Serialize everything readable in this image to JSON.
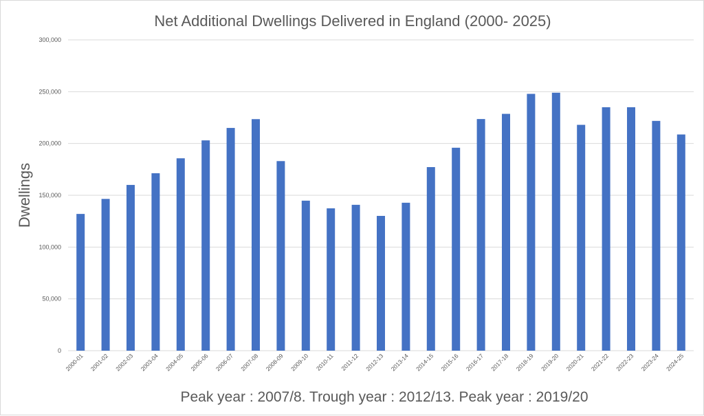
{
  "chart_data": {
    "type": "bar",
    "title": "Net Additional Dwellings Delivered in England (2000- 2025)",
    "xlabel": "Peak year : 2007/8. Trough year : 2012/13. Peak year : 2019/20",
    "ylabel": "Dwellings",
    "ylim": [
      0,
      300000
    ],
    "yticks": [
      0,
      50000,
      100000,
      150000,
      200000,
      250000,
      300000
    ],
    "ytick_labels": [
      "0",
      "50,000",
      "100,000",
      "150,000",
      "200,000",
      "250,000",
      "300,000"
    ],
    "grid": true,
    "bar_color": "#4472C4",
    "categories": [
      "2000-01",
      "2001-02",
      "2002-03",
      "2003-04",
      "2004-05",
      "2005-06",
      "2006-07",
      "2007-08",
      "2008-09",
      "2009-10",
      "2010-11",
      "2011-12",
      "2012-13",
      "2013-14",
      "2014-15",
      "2015-16",
      "2016-17",
      "2017-18",
      "2018-19",
      "2019-20",
      "2020-21",
      "2021-22",
      "2022-23",
      "2023-24",
      "2024-25"
    ],
    "values": [
      132000,
      146500,
      160000,
      171300,
      185700,
      203000,
      215000,
      223500,
      183000,
      144800,
      137400,
      140800,
      130100,
      142800,
      177200,
      195900,
      223600,
      228600,
      247900,
      249000,
      218000,
      235000,
      235000,
      221800,
      208700
    ]
  }
}
